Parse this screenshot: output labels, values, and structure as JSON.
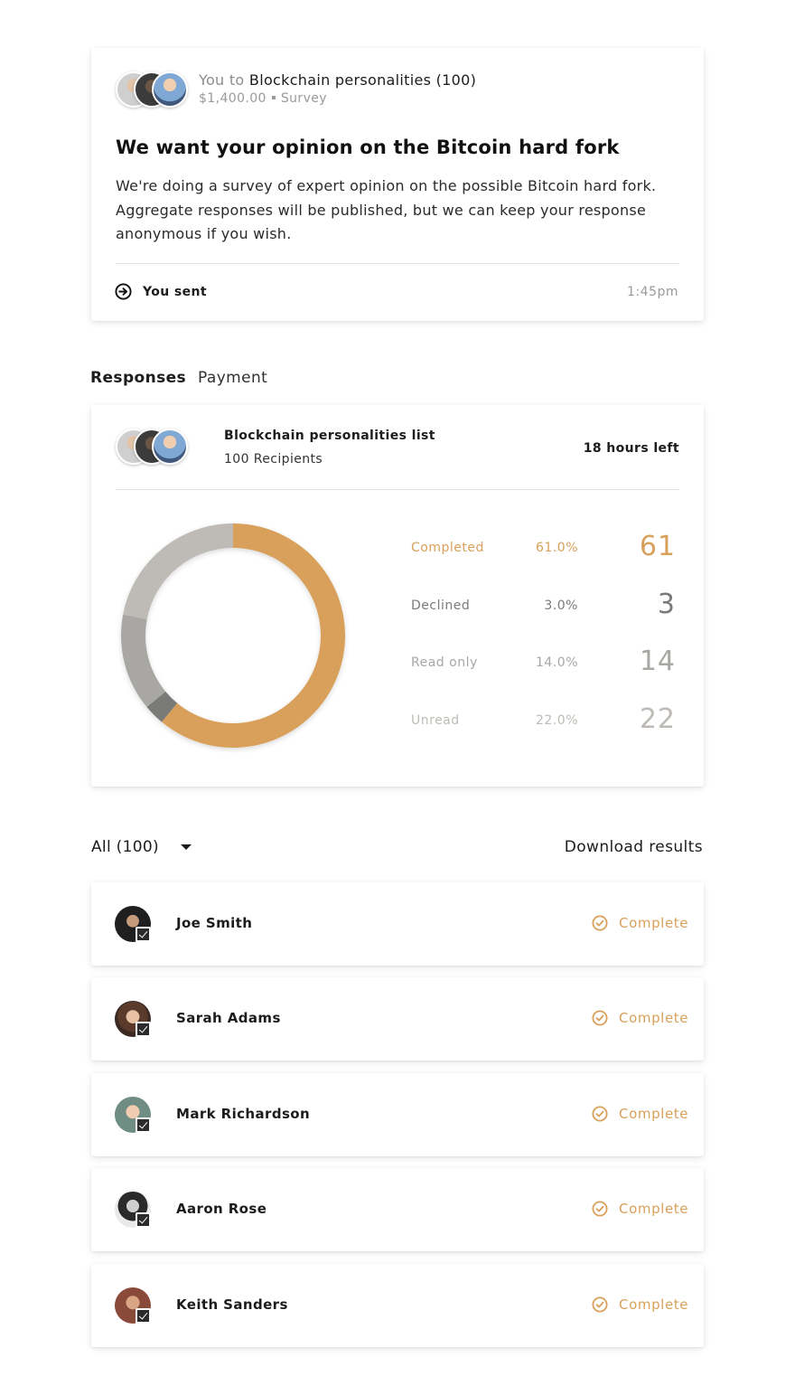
{
  "colors": {
    "accent": "#D8A05A",
    "declined": "#7A7A78",
    "read_only": "#A8A7A3",
    "unread": "#BEBBB6"
  },
  "message": {
    "header_prefix": "You to",
    "recipient_group": "Blockchain personalities (100)",
    "amount": "$1,400.00",
    "type": "Survey",
    "title": "We want your opinion on the Bitcoin hard fork",
    "body": "We're doing a survey of expert opinion on the possible Bitcoin hard fork. Aggregate responses will be published, but we can keep your response anonymous if you wish.",
    "sent_label": "You sent",
    "sent_time": "1:45pm",
    "sent_icon": "arrow-right-circle-icon"
  },
  "tabs": [
    {
      "label": "Responses",
      "active": true
    },
    {
      "label": "Payment",
      "active": false
    }
  ],
  "responses": {
    "list_name": "Blockchain personalities list",
    "recipients": "100 Recipients",
    "time_left": "18 hours left",
    "stats": [
      {
        "label": "Completed",
        "percent": "61.0%",
        "count": "61",
        "value": 61,
        "color": "#D8A05A"
      },
      {
        "label": "Declined",
        "percent": "3.0%",
        "count": "3",
        "value": 3,
        "color": "#7A7A78"
      },
      {
        "label": "Read only",
        "percent": "14.0%",
        "count": "14",
        "value": 14,
        "color": "#A8A7A3"
      },
      {
        "label": "Unread",
        "percent": "22.0%",
        "count": "22",
        "value": 22,
        "color": "#BEBBB6"
      }
    ]
  },
  "filter": {
    "label": "All (100)",
    "download_label": "Download results"
  },
  "recipients": [
    {
      "name": "Joe Smith",
      "status": "Complete"
    },
    {
      "name": "Sarah Adams",
      "status": "Complete"
    },
    {
      "name": "Mark Richardson",
      "status": "Complete"
    },
    {
      "name": "Aaron Rose",
      "status": "Complete"
    },
    {
      "name": "Keith Sanders",
      "status": "Complete"
    }
  ]
}
